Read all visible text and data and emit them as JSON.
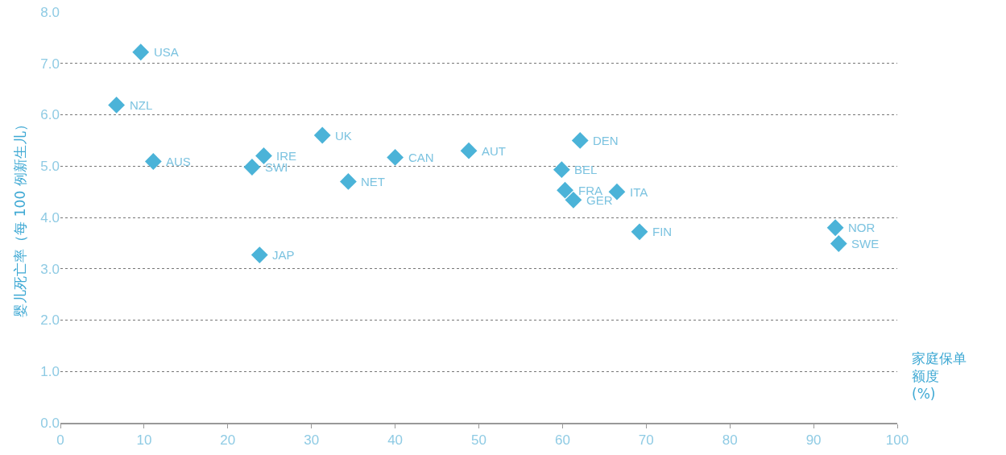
{
  "chart_data": {
    "type": "scatter",
    "xlabel": "家庭保单额度(%)",
    "ylabel": "婴儿死亡率（每 100 例新生儿）",
    "x": [
      9.6,
      6.7,
      11.1,
      22.9,
      24.3,
      23.8,
      31.3,
      34.4,
      40.0,
      48.8,
      62.1,
      59.9,
      60.3,
      61.3,
      66.5,
      69.2,
      92.6,
      93.0
    ],
    "values": [
      7.22,
      6.19,
      5.09,
      4.98,
      5.2,
      3.27,
      5.6,
      4.7,
      5.17,
      5.3,
      5.5,
      4.93,
      4.53,
      4.34,
      4.5,
      3.72,
      3.8,
      3.49
    ],
    "color": "#4bb3d8",
    "marker": "diamond",
    "annotations": [
      {
        "text": "USA",
        "x": 9.6,
        "y": 7.22
      },
      {
        "text": "NZL",
        "x": 6.7,
        "y": 6.19
      },
      {
        "text": "AUS",
        "x": 11.1,
        "y": 5.09
      },
      {
        "text": "SWI",
        "x": 22.9,
        "y": 4.98
      },
      {
        "text": "IRE",
        "x": 24.3,
        "y": 5.2
      },
      {
        "text": "JAP",
        "x": 23.8,
        "y": 3.27
      },
      {
        "text": "UK",
        "x": 31.3,
        "y": 5.6
      },
      {
        "text": "NET",
        "x": 34.4,
        "y": 4.7
      },
      {
        "text": "CAN",
        "x": 40.0,
        "y": 5.17
      },
      {
        "text": "AUT",
        "x": 48.8,
        "y": 5.3
      },
      {
        "text": "DEN",
        "x": 62.1,
        "y": 5.5
      },
      {
        "text": "BEL",
        "x": 59.9,
        "y": 4.93
      },
      {
        "text": "FRA",
        "x": 60.3,
        "y": 4.53
      },
      {
        "text": "GER",
        "x": 61.3,
        "y": 4.34
      },
      {
        "text": "ITA",
        "x": 66.5,
        "y": 4.5
      },
      {
        "text": "FIN",
        "x": 69.2,
        "y": 3.72
      },
      {
        "text": "NOR",
        "x": 92.6,
        "y": 3.8
      },
      {
        "text": "SWE",
        "x": 93.0,
        "y": 3.49
      }
    ],
    "xlim": [
      0,
      100
    ],
    "xticks": [
      0,
      10,
      20,
      30,
      40,
      50,
      60,
      70,
      80,
      90,
      100
    ],
    "ylim": [
      0,
      8
    ],
    "yticks": [
      {
        "value": 0,
        "label": "0.0"
      },
      {
        "value": 1,
        "label": "1.0"
      },
      {
        "value": 2,
        "label": "2.0"
      },
      {
        "value": 3,
        "label": "3.0"
      },
      {
        "value": 4,
        "label": "4.0"
      },
      {
        "value": 5,
        "label": "5.0"
      },
      {
        "value": 6,
        "label": "6.0"
      },
      {
        "value": 7,
        "label": "7.0"
      },
      {
        "value": 8,
        "label": "8.0"
      }
    ],
    "grid": "y"
  }
}
